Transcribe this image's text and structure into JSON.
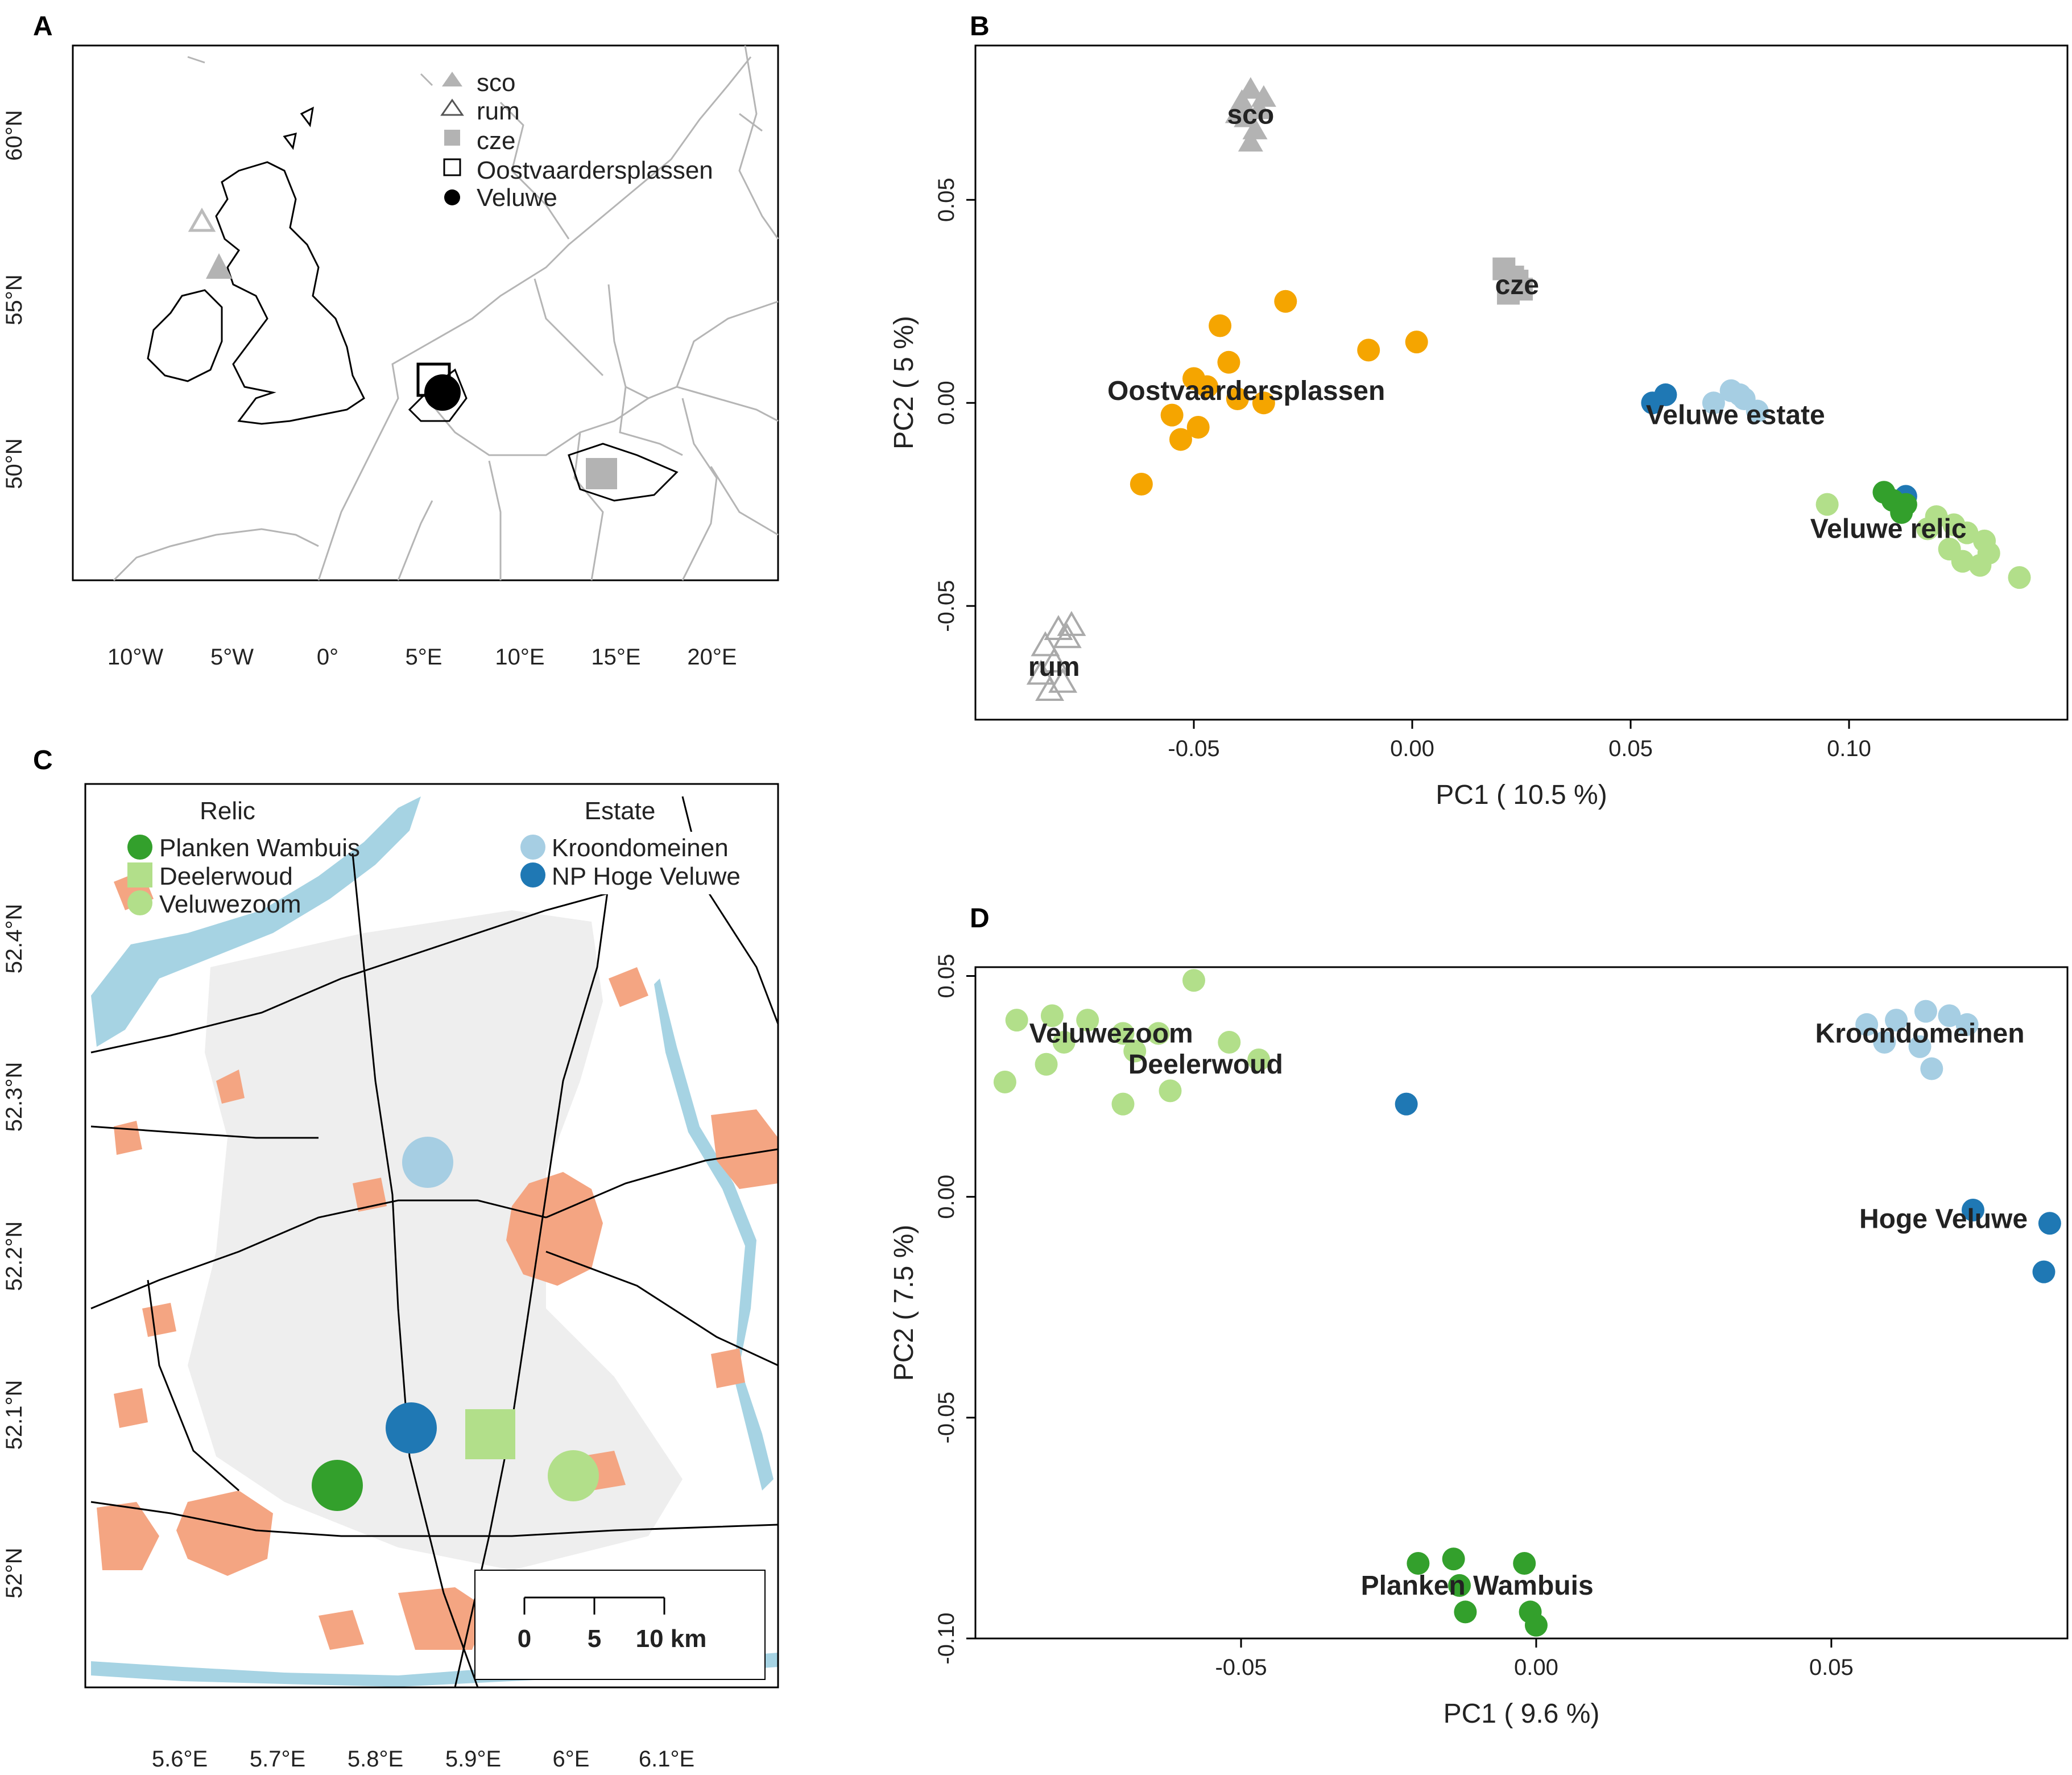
{
  "panels": {
    "A": {
      "letter": "A"
    },
    "B": {
      "letter": "B"
    },
    "C": {
      "letter": "C"
    },
    "D": {
      "letter": "D"
    }
  },
  "map_a": {
    "legend": [
      {
        "symbol": "filled-triangle",
        "label": "sco",
        "color": "#b3b3b3"
      },
      {
        "symbol": "open-triangle",
        "label": "rum",
        "color": "#555555"
      },
      {
        "symbol": "filled-square",
        "label": "cze",
        "color": "#b3b3b3"
      },
      {
        "symbol": "open-square",
        "label": "Oostvaardersplassen",
        "color": "#000000"
      },
      {
        "symbol": "filled-circle",
        "label": "Veluwe",
        "color": "#000000"
      }
    ],
    "x_ticks": [
      "10°W",
      "5°W",
      "0°",
      "5°E",
      "10°E",
      "15°E",
      "20°E"
    ],
    "y_ticks": [
      "60°N",
      "55°N",
      "50°N"
    ]
  },
  "map_c": {
    "legend_relic_title": "Relic",
    "legend_estate_title": "Estate",
    "legend_relic": [
      {
        "symbol": "circle",
        "label": "Planken Wambuis",
        "color": "#33a02c"
      },
      {
        "symbol": "square",
        "label": "Deelerwoud",
        "color": "#b2df8a"
      },
      {
        "symbol": "circle",
        "label": "Veluwezoom",
        "color": "#b2df8a"
      }
    ],
    "legend_estate": [
      {
        "symbol": "circle",
        "label": "Kroondomeinen",
        "color": "#a6cee3"
      },
      {
        "symbol": "circle",
        "label": "NP Hoge Veluwe",
        "color": "#1f78b4"
      }
    ],
    "x_ticks": [
      "5.6°E",
      "5.7°E",
      "5.8°E",
      "5.9°E",
      "6°E",
      "6.1°E"
    ],
    "y_ticks": [
      "52.4°N",
      "52.3°N",
      "52.2°N",
      "52.1°N",
      "52°N"
    ],
    "scale_bar": {
      "ticks": [
        "0",
        "5",
        "10 km"
      ]
    },
    "colors": {
      "urban": "#f4a582",
      "forest": "#eeeeee",
      "water": "#a6d3e3"
    }
  },
  "chart_data": [
    {
      "panel": "B",
      "type": "scatter",
      "xlabel": "PC1 ( 10.5 %)",
      "ylabel": "PC2 ( 5 %)",
      "xlim": [
        -0.1,
        0.15
      ],
      "ylim": [
        -0.078,
        0.088
      ],
      "x_ticks": [
        "-0.05",
        "0.00",
        "0.05",
        "0.10"
      ],
      "y_ticks": [
        "-0.05",
        "0.00",
        "0.05"
      ],
      "series": [
        {
          "name": "sco",
          "color": "#b3b3b3",
          "marker": "filled-triangle",
          "x": [
            -0.039,
            -0.037,
            -0.035,
            -0.038,
            -0.036,
            -0.04,
            -0.034,
            -0.037
          ],
          "y": [
            0.074,
            0.077,
            0.072,
            0.07,
            0.067,
            0.071,
            0.075,
            0.064
          ]
        },
        {
          "name": "rum",
          "color": "#aaaaaa",
          "marker": "open-triangle",
          "x": [
            -0.081,
            -0.084,
            -0.079,
            -0.082,
            -0.085,
            -0.08,
            -0.083,
            -0.078
          ],
          "y": [
            -0.056,
            -0.06,
            -0.058,
            -0.064,
            -0.067,
            -0.069,
            -0.071,
            -0.055
          ]
        },
        {
          "name": "cze",
          "color": "#b3b3b3",
          "marker": "filled-square",
          "x": [
            0.021,
            0.023,
            0.025,
            0.022,
            0.024
          ],
          "y": [
            0.033,
            0.031,
            0.028,
            0.027,
            0.03
          ]
        },
        {
          "name": "Oostvaardersplassen",
          "color": "#f5a500",
          "marker": "filled-circle",
          "x": [
            -0.029,
            -0.044,
            -0.042,
            -0.05,
            -0.047,
            -0.04,
            -0.034,
            -0.055,
            -0.049,
            -0.053,
            -0.062,
            0.001,
            -0.01
          ],
          "y": [
            0.025,
            0.019,
            0.01,
            0.006,
            0.004,
            0.001,
            0.0,
            -0.003,
            -0.006,
            -0.009,
            -0.02,
            0.015,
            0.013
          ]
        },
        {
          "name": "Veluwe estate (Kroondomeinen)",
          "color": "#a6cee3",
          "marker": "filled-circle",
          "x": [
            0.073,
            0.076,
            0.079,
            0.069,
            0.075
          ],
          "y": [
            0.003,
            0.001,
            -0.002,
            0.0,
            0.002
          ]
        },
        {
          "name": "Veluwe estate (NP Hoge Veluwe)",
          "color": "#1f78b4",
          "marker": "filled-circle",
          "x": [
            0.058,
            0.055,
            0.113
          ],
          "y": [
            0.002,
            0.0,
            -0.023
          ]
        },
        {
          "name": "Veluwe relic (Planken Wambuis)",
          "color": "#33a02c",
          "marker": "filled-circle",
          "x": [
            0.108,
            0.11,
            0.113,
            0.112
          ],
          "y": [
            -0.022,
            -0.024,
            -0.025,
            -0.027
          ]
        },
        {
          "name": "Veluwe relic (Veluwezoom / Deelerwoud)",
          "color": "#b2df8a",
          "marker": "filled-circle",
          "x": [
            0.095,
            0.12,
            0.124,
            0.127,
            0.131,
            0.132,
            0.126,
            0.123,
            0.13,
            0.139,
            0.118
          ],
          "y": [
            -0.025,
            -0.028,
            -0.03,
            -0.032,
            -0.034,
            -0.037,
            -0.039,
            -0.036,
            -0.04,
            -0.043,
            -0.031
          ]
        }
      ],
      "annotations": [
        {
          "text": "sco",
          "x": -0.037,
          "y": 0.071
        },
        {
          "text": "rum",
          "x": -0.082,
          "y": -0.065
        },
        {
          "text": "cze",
          "x": 0.024,
          "y": 0.029
        },
        {
          "text": "Oostvaardersplassen",
          "x": -0.038,
          "y": 0.003
        },
        {
          "text": "Veluwe estate",
          "x": 0.074,
          "y": -0.003
        },
        {
          "text": "Veluwe relic",
          "x": 0.109,
          "y": -0.031
        }
      ]
    },
    {
      "panel": "D",
      "type": "scatter",
      "xlabel": "PC1 ( 9.6 %)",
      "ylabel": "PC2 ( 7.5 %)",
      "xlim": [
        -0.095,
        0.09
      ],
      "ylim": [
        -0.1,
        0.052
      ],
      "x_ticks": [
        "-0.05",
        "0.00",
        "0.05"
      ],
      "y_ticks": [
        "-0.10",
        "-0.05",
        "0.00",
        "0.05"
      ],
      "series": [
        {
          "name": "Veluwezoom / Deelerwoud",
          "color": "#b2df8a",
          "marker": "filled-circle",
          "x": [
            -0.088,
            -0.082,
            -0.076,
            -0.07,
            -0.064,
            -0.058,
            -0.052,
            -0.047,
            -0.09,
            -0.083,
            -0.07,
            -0.062,
            -0.08,
            -0.068
          ],
          "y": [
            0.04,
            0.041,
            0.04,
            0.037,
            0.037,
            0.049,
            0.035,
            0.031,
            0.026,
            0.03,
            0.021,
            0.024,
            0.035,
            0.033
          ]
        },
        {
          "name": "Kroondomeinen",
          "color": "#a6cee3",
          "marker": "filled-circle",
          "x": [
            0.056,
            0.061,
            0.066,
            0.07,
            0.073,
            0.059,
            0.065,
            0.067
          ],
          "y": [
            0.039,
            0.04,
            0.042,
            0.041,
            0.039,
            0.035,
            0.034,
            0.029
          ]
        },
        {
          "name": "NP Hoge Veluwe",
          "color": "#1f78b4",
          "marker": "filled-circle",
          "x": [
            -0.022,
            0.074,
            0.087,
            0.086
          ],
          "y": [
            0.021,
            -0.003,
            -0.006,
            -0.017
          ]
        },
        {
          "name": "Planken Wambuis",
          "color": "#33a02c",
          "marker": "filled-circle",
          "x": [
            -0.02,
            -0.014,
            -0.013,
            -0.012,
            -0.002,
            -0.001,
            0.0
          ],
          "y": [
            -0.083,
            -0.082,
            -0.088,
            -0.094,
            -0.083,
            -0.094,
            -0.097
          ]
        }
      ],
      "annotations": [
        {
          "text": "Veluwezoom",
          "x": -0.072,
          "y": 0.037
        },
        {
          "text": "Deelerwoud",
          "x": -0.056,
          "y": 0.03
        },
        {
          "text": "Kroondomeinen",
          "x": 0.065,
          "y": 0.037
        },
        {
          "text": "Hoge Veluwe",
          "x": 0.069,
          "y": -0.005
        },
        {
          "text": "Planken Wambuis",
          "x": -0.01,
          "y": -0.088
        }
      ]
    }
  ]
}
